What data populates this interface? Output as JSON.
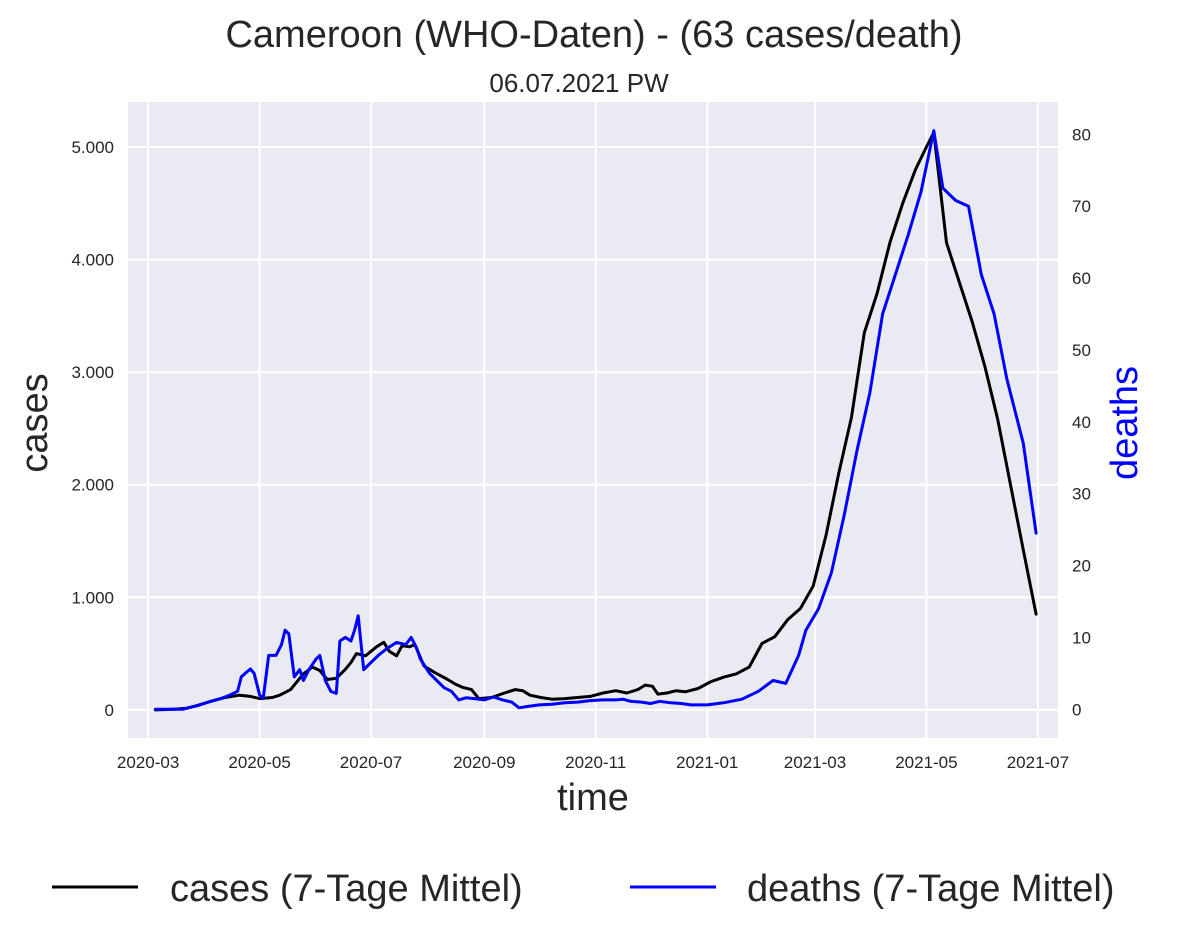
{
  "chart_data": {
    "type": "line",
    "title": "Cameroon (WHO-Daten) - (63 cases/death)",
    "subtitle": "06.07.2021 PW",
    "xlabel": "time",
    "ylabel_left": "cases",
    "ylabel_right": "deaths",
    "x_range": [
      "2020-02-19",
      "2021-07-12"
    ],
    "x_ticks": [
      "2020-03-01",
      "2020-05-01",
      "2020-07-01",
      "2020-09-01",
      "2020-11-01",
      "2021-01-01",
      "2021-03-01",
      "2021-05-01",
      "2021-07-01"
    ],
    "x_tick_labels": [
      "2020-03",
      "2020-05",
      "2020-07",
      "2020-09",
      "2020-11",
      "2021-01",
      "2021-03",
      "2021-05",
      "2021-07"
    ],
    "y_left_range": [
      -250,
      5400
    ],
    "y_left_ticks": [
      0,
      1000,
      2000,
      3000,
      4000,
      5000
    ],
    "y_left_tick_labels": [
      "0",
      "1.000",
      "2.000",
      "3.000",
      "4.000",
      "5.000"
    ],
    "y_right_range": [
      -4,
      84.5
    ],
    "y_right_ticks": [
      0,
      10,
      20,
      30,
      40,
      50,
      60,
      70,
      80
    ],
    "y_right_tick_labels": [
      "0",
      "10",
      "20",
      "30",
      "40",
      "50",
      "60",
      "70",
      "80"
    ],
    "grid": true,
    "legend_position": "bottom",
    "series": [
      {
        "name": "cases (7-Tage Mittel)",
        "axis": "left",
        "color": "#000000",
        "points": [
          [
            "2020-03-05",
            0
          ],
          [
            "2020-03-15",
            5
          ],
          [
            "2020-03-22",
            15
          ],
          [
            "2020-03-28",
            40
          ],
          [
            "2020-04-05",
            80
          ],
          [
            "2020-04-12",
            110
          ],
          [
            "2020-04-20",
            130
          ],
          [
            "2020-04-26",
            120
          ],
          [
            "2020-05-01",
            100
          ],
          [
            "2020-05-08",
            110
          ],
          [
            "2020-05-12",
            130
          ],
          [
            "2020-05-18",
            180
          ],
          [
            "2020-05-25",
            320
          ],
          [
            "2020-05-30",
            380
          ],
          [
            "2020-06-03",
            350
          ],
          [
            "2020-06-07",
            270
          ],
          [
            "2020-06-12",
            280
          ],
          [
            "2020-06-17",
            360
          ],
          [
            "2020-06-20",
            420
          ],
          [
            "2020-06-23",
            500
          ],
          [
            "2020-06-28",
            480
          ],
          [
            "2020-07-04",
            560
          ],
          [
            "2020-07-08",
            600
          ],
          [
            "2020-07-11",
            520
          ],
          [
            "2020-07-15",
            480
          ],
          [
            "2020-07-18",
            570
          ],
          [
            "2020-07-22",
            560
          ],
          [
            "2020-07-25",
            580
          ],
          [
            "2020-07-30",
            390
          ],
          [
            "2020-08-05",
            330
          ],
          [
            "2020-08-12",
            270
          ],
          [
            "2020-08-16",
            230
          ],
          [
            "2020-08-20",
            200
          ],
          [
            "2020-08-25",
            180
          ],
          [
            "2020-08-29",
            100
          ],
          [
            "2020-09-05",
            110
          ],
          [
            "2020-09-12",
            150
          ],
          [
            "2020-09-18",
            180
          ],
          [
            "2020-09-22",
            170
          ],
          [
            "2020-09-26",
            130
          ],
          [
            "2020-10-02",
            110
          ],
          [
            "2020-10-08",
            95
          ],
          [
            "2020-10-15",
            100
          ],
          [
            "2020-10-22",
            110
          ],
          [
            "2020-10-29",
            120
          ],
          [
            "2020-11-05",
            150
          ],
          [
            "2020-11-12",
            170
          ],
          [
            "2020-11-18",
            150
          ],
          [
            "2020-11-24",
            180
          ],
          [
            "2020-11-28",
            220
          ],
          [
            "2020-12-02",
            210
          ],
          [
            "2020-12-05",
            140
          ],
          [
            "2020-12-10",
            150
          ],
          [
            "2020-12-15",
            170
          ],
          [
            "2020-12-20",
            160
          ],
          [
            "2020-12-27",
            190
          ],
          [
            "2021-01-03",
            250
          ],
          [
            "2021-01-10",
            290
          ],
          [
            "2021-01-17",
            320
          ],
          [
            "2021-01-24",
            380
          ],
          [
            "2021-01-31",
            590
          ],
          [
            "2021-02-07",
            650
          ],
          [
            "2021-02-14",
            800
          ],
          [
            "2021-02-21",
            900
          ],
          [
            "2021-02-28",
            1100
          ],
          [
            "2021-03-07",
            1550
          ],
          [
            "2021-03-14",
            2100
          ],
          [
            "2021-03-21",
            2600
          ],
          [
            "2021-03-28",
            3350
          ],
          [
            "2021-04-04",
            3700
          ],
          [
            "2021-04-11",
            4150
          ],
          [
            "2021-04-18",
            4500
          ],
          [
            "2021-04-25",
            4800
          ],
          [
            "2021-05-01",
            5000
          ],
          [
            "2021-05-05",
            5130
          ],
          [
            "2021-05-12",
            4150
          ],
          [
            "2021-05-19",
            3800
          ],
          [
            "2021-05-26",
            3450
          ],
          [
            "2021-06-02",
            3050
          ],
          [
            "2021-06-09",
            2580
          ],
          [
            "2021-06-16",
            2000
          ],
          [
            "2021-06-23",
            1420
          ],
          [
            "2021-06-30",
            850
          ]
        ]
      },
      {
        "name": "deaths (7-Tage Mittel)",
        "axis": "right",
        "color": "#0000ff",
        "points": [
          [
            "2020-03-05",
            0
          ],
          [
            "2020-03-20",
            0
          ],
          [
            "2020-03-28",
            0.5
          ],
          [
            "2020-04-03",
            1
          ],
          [
            "2020-04-10",
            1.5
          ],
          [
            "2020-04-15",
            2
          ],
          [
            "2020-04-19",
            2.5
          ],
          [
            "2020-04-21",
            4.5
          ],
          [
            "2020-04-24",
            5.2
          ],
          [
            "2020-04-26",
            5.6
          ],
          [
            "2020-04-28",
            5
          ],
          [
            "2020-05-01",
            2
          ],
          [
            "2020-05-03",
            1.5
          ],
          [
            "2020-05-06",
            7.5
          ],
          [
            "2020-05-10",
            7.5
          ],
          [
            "2020-05-13",
            9
          ],
          [
            "2020-05-15",
            11
          ],
          [
            "2020-05-17",
            10.5
          ],
          [
            "2020-05-20",
            4.5
          ],
          [
            "2020-05-23",
            5.5
          ],
          [
            "2020-05-25",
            4
          ],
          [
            "2020-05-28",
            5.5
          ],
          [
            "2020-06-01",
            7
          ],
          [
            "2020-06-03",
            7.5
          ],
          [
            "2020-06-06",
            4
          ],
          [
            "2020-06-09",
            2.5
          ],
          [
            "2020-06-12",
            2.2
          ],
          [
            "2020-06-14",
            9.5
          ],
          [
            "2020-06-17",
            10
          ],
          [
            "2020-06-20",
            9.5
          ],
          [
            "2020-06-22",
            11
          ],
          [
            "2020-06-24",
            13
          ],
          [
            "2020-06-27",
            5.5
          ],
          [
            "2020-07-01",
            6.5
          ],
          [
            "2020-07-05",
            7.5
          ],
          [
            "2020-07-10",
            8.5
          ],
          [
            "2020-07-15",
            9.3
          ],
          [
            "2020-07-20",
            9
          ],
          [
            "2020-07-23",
            10
          ],
          [
            "2020-07-26",
            8.5
          ],
          [
            "2020-07-28",
            7
          ],
          [
            "2020-08-02",
            5
          ],
          [
            "2020-08-06",
            4
          ],
          [
            "2020-08-10",
            3
          ],
          [
            "2020-08-14",
            2.5
          ],
          [
            "2020-08-18",
            1.3
          ],
          [
            "2020-08-22",
            1.6
          ],
          [
            "2020-08-26",
            1.5
          ],
          [
            "2020-09-01",
            1.3
          ],
          [
            "2020-09-06",
            1.7
          ],
          [
            "2020-09-11",
            1.3
          ],
          [
            "2020-09-16",
            1
          ],
          [
            "2020-09-20",
            0.2
          ],
          [
            "2020-09-25",
            0.4
          ],
          [
            "2020-10-01",
            0.6
          ],
          [
            "2020-10-08",
            0.7
          ],
          [
            "2020-10-15",
            0.9
          ],
          [
            "2020-10-22",
            1
          ],
          [
            "2020-10-29",
            1.2
          ],
          [
            "2020-11-05",
            1.3
          ],
          [
            "2020-11-12",
            1.3
          ],
          [
            "2020-11-16",
            1.4
          ],
          [
            "2020-11-20",
            1.1
          ],
          [
            "2020-11-26",
            1
          ],
          [
            "2020-12-01",
            0.8
          ],
          [
            "2020-12-06",
            1.1
          ],
          [
            "2020-12-12",
            0.9
          ],
          [
            "2020-12-18",
            0.8
          ],
          [
            "2020-12-23",
            0.6
          ],
          [
            "2021-01-01",
            0.6
          ],
          [
            "2021-01-10",
            0.9
          ],
          [
            "2021-01-20",
            1.4
          ],
          [
            "2021-01-29",
            2.5
          ],
          [
            "2021-02-06",
            4
          ],
          [
            "2021-02-13",
            3.6
          ],
          [
            "2021-02-20",
            7.5
          ],
          [
            "2021-02-24",
            11
          ],
          [
            "2021-03-03",
            14
          ],
          [
            "2021-03-10",
            19
          ],
          [
            "2021-03-17",
            27
          ],
          [
            "2021-03-24",
            36
          ],
          [
            "2021-03-31",
            44
          ],
          [
            "2021-04-07",
            55
          ],
          [
            "2021-04-14",
            60.5
          ],
          [
            "2021-04-21",
            66
          ],
          [
            "2021-04-28",
            72
          ],
          [
            "2021-05-05",
            80.5
          ],
          [
            "2021-05-10",
            72.5
          ],
          [
            "2021-05-17",
            70.8
          ],
          [
            "2021-05-24",
            70
          ],
          [
            "2021-05-31",
            60.5
          ],
          [
            "2021-06-07",
            55
          ],
          [
            "2021-06-14",
            46
          ],
          [
            "2021-06-23",
            37
          ],
          [
            "2021-06-30",
            24.5
          ]
        ]
      }
    ]
  }
}
